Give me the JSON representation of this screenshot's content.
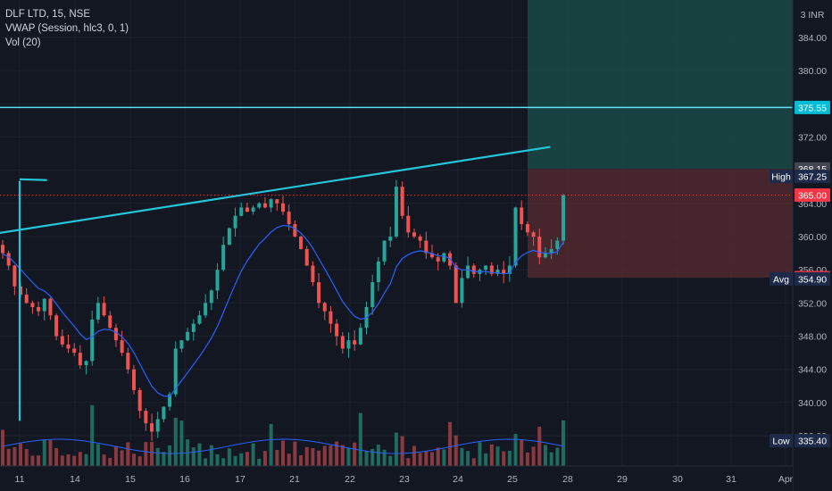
{
  "legend": {
    "symbol": "DLF LTD, 15, NSE",
    "vwap": "VWAP (Session, hlc3, 0, 1)",
    "vol": "Vol (20)"
  },
  "chart_data": {
    "type": "candlestick",
    "currency_label": "INR",
    "y_ticks": [
      384.0,
      380.0,
      376.0,
      372.0,
      368.0,
      364.0,
      360.0,
      356.0,
      352.0,
      348.0,
      344.0,
      340.0,
      336.0
    ],
    "y_tick_labels": [
      "384.00",
      "380.00",
      "",
      "372.00",
      "",
      "364.00",
      "360.00",
      "356.00",
      "352.00",
      "348.00",
      "344.00",
      "340.00",
      "336.00"
    ],
    "x_ticks": [
      "11",
      "14",
      "15",
      "16",
      "17",
      "21",
      "22",
      "23",
      "24",
      "25",
      "28",
      "29",
      "30",
      "31",
      "Apr"
    ],
    "ylim": [
      333.0,
      388.5
    ],
    "price_badges": [
      {
        "label": "",
        "value": "375.55",
        "price": 375.55,
        "color": "#00bcd4"
      },
      {
        "label": "",
        "value": "368.15",
        "price": 368.15,
        "color": "#434651"
      },
      {
        "label": "High",
        "value": "367.25",
        "price": 367.25,
        "color": "#1e2a4a"
      },
      {
        "label": "",
        "value": "365.00",
        "price": 365.0,
        "color": "#f23645"
      },
      {
        "label": "",
        "value": "355.05",
        "price": 355.05,
        "color": "#f23645"
      },
      {
        "label": "Avg",
        "value": "354.90",
        "price": 354.9,
        "color": "#1e2a4a"
      },
      {
        "label": "Low",
        "value": "335.40",
        "price": 335.4,
        "color": "#1e2a4a"
      }
    ],
    "horizontal_line": {
      "price": 375.55,
      "color": "#5ee0f0"
    },
    "position_tool": {
      "entry": 368.15,
      "target": 388.5,
      "stop": 355.05,
      "start_day": "25",
      "end_day": "Apr",
      "profit_color": "#1a4a48",
      "loss_color": "#5a2b32"
    },
    "trendlines": [
      {
        "from": {
          "day": 10.0,
          "price": 360.4
        },
        "to": {
          "day": 25.7,
          "price": 370.8
        }
      },
      {
        "from": {
          "day": 11.5,
          "price": 366.8
        },
        "to": {
          "day": 27.95,
          "price": 366.9
        }
      },
      {
        "from": {
          "day": 12.9,
          "price": 337.8
        },
        "to": {
          "day": 27.95,
          "price": 366.7
        }
      }
    ],
    "series": [
      {
        "name": "DLF LTD",
        "kind": "ohlc_path",
        "close_path": [
          358.0,
          356.5,
          354.0,
          353.0,
          352.0,
          351.5,
          351.0,
          352.5,
          350.5,
          348.0,
          347.0,
          346.5,
          346.0,
          344.5,
          345.0,
          350.0,
          352.0,
          350.5,
          349.0,
          347.5,
          346.0,
          344.0,
          341.5,
          339.0,
          337.5,
          336.5,
          338.0,
          339.5,
          341.0,
          346.5,
          347.5,
          348.5,
          349.5,
          350.5,
          352.0,
          353.5,
          356.0,
          359.0,
          361.0,
          362.5,
          363.5,
          363.0,
          363.5,
          364.0,
          363.5,
          364.5,
          364.0,
          363.0,
          361.5,
          360.0,
          358.5,
          356.5,
          354.5,
          352.0,
          351.0,
          349.5,
          348.0,
          346.5,
          347.5,
          347.0,
          349.0,
          351.5,
          354.5,
          357.0,
          359.5,
          360.0,
          366.0,
          362.5,
          360.5,
          360.0,
          359.5,
          358.0,
          357.5,
          357.0,
          358.0,
          356.5,
          352.0,
          355.0,
          356.5,
          355.5,
          356.0,
          356.5,
          355.5,
          356.0,
          355.5,
          356.5,
          363.5,
          361.5,
          360.5,
          360.0,
          357.5,
          358.0,
          358.5,
          359.5,
          365.0
        ]
      },
      {
        "name": "VWAP",
        "kind": "line"
      },
      {
        "name": "Vol",
        "kind": "bars"
      }
    ]
  }
}
